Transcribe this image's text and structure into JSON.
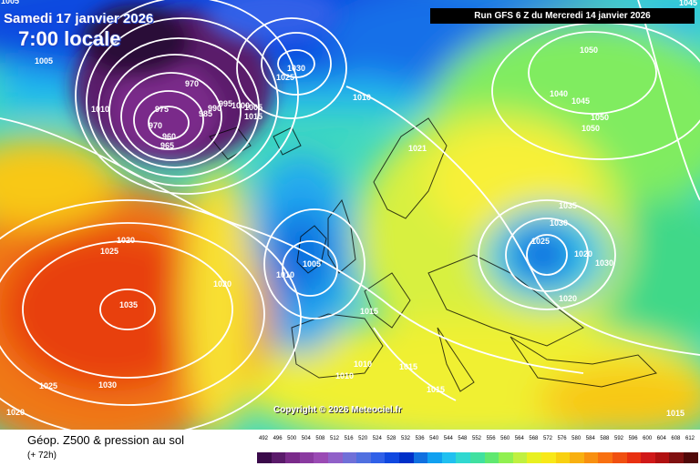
{
  "header": {
    "date_line": "Samedi 17 janvier 2026",
    "time_line": "7:00 locale",
    "run_line": "Run GFS 6 Z du Mercredi 14 janvier 2026",
    "copyright": "Copyright © 2026 Meteociel.fr"
  },
  "footer": {
    "title": "Géop. Z500 & pression au sol",
    "subtitle": "(+ 72h)"
  },
  "legend": {
    "values": [
      "492",
      "496",
      "500",
      "504",
      "508",
      "512",
      "516",
      "520",
      "524",
      "528",
      "532",
      "536",
      "540",
      "544",
      "548",
      "552",
      "556",
      "560",
      "564",
      "568",
      "572",
      "576",
      "580",
      "584",
      "588",
      "592",
      "596",
      "600",
      "604",
      "608",
      "612"
    ],
    "colors": [
      "#3a0a4a",
      "#5a1a6a",
      "#7a2a8a",
      "#8a3aa0",
      "#9a4ab4",
      "#9060c8",
      "#7070d8",
      "#5070e0",
      "#3060e8",
      "#1048e0",
      "#0030c8",
      "#1070e0",
      "#10a0f0",
      "#20c0f0",
      "#30d8d0",
      "#40e0a0",
      "#60e870",
      "#90f050",
      "#c0f040",
      "#e8f020",
      "#f8e818",
      "#f8d010",
      "#f8b010",
      "#f89010",
      "#f87010",
      "#f05010",
      "#e83010",
      "#d01818",
      "#b01010",
      "#801010",
      "#500808"
    ]
  },
  "pressure_labels": [
    {
      "text": "1005"
    },
    {
      "text": "1010"
    },
    {
      "text": "970"
    },
    {
      "text": "975"
    },
    {
      "text": "970"
    },
    {
      "text": "960"
    },
    {
      "text": "965"
    },
    {
      "text": "985"
    },
    {
      "text": "990"
    },
    {
      "text": "995"
    },
    {
      "text": "1000"
    },
    {
      "text": "1005"
    },
    {
      "text": "1015"
    },
    {
      "text": "1030"
    },
    {
      "text": "1025"
    },
    {
      "text": "1010"
    },
    {
      "text": "1021"
    },
    {
      "text": "1050"
    },
    {
      "text": "1040"
    },
    {
      "text": "1045"
    },
    {
      "text": "1050"
    },
    {
      "text": "1050"
    },
    {
      "text": "1035"
    },
    {
      "text": "1030"
    },
    {
      "text": "1025"
    },
    {
      "text": "1020"
    },
    {
      "text": "1030"
    },
    {
      "text": "1020"
    },
    {
      "text": "1020"
    },
    {
      "text": "1025"
    },
    {
      "text": "1035"
    },
    {
      "text": "1020"
    },
    {
      "text": "1005"
    },
    {
      "text": "1010"
    },
    {
      "text": "1015"
    },
    {
      "text": "1010"
    },
    {
      "text": "1010"
    },
    {
      "text": "1015"
    },
    {
      "text": "1015"
    },
    {
      "text": "1025"
    },
    {
      "text": "1030"
    },
    {
      "text": "1020"
    },
    {
      "text": "1015"
    },
    {
      "text": "1045"
    },
    {
      "text": "1005"
    }
  ],
  "colors": {
    "ocean_blue": "#1f6fe0",
    "low_purple": "#7a2a8a",
    "high_red": "#e83010",
    "yellow": "#f0f028"
  }
}
